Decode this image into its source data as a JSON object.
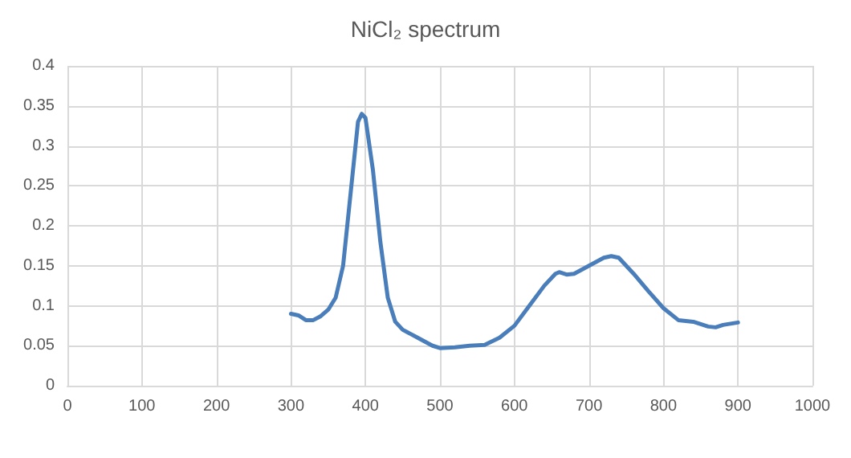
{
  "chart_data": {
    "type": "line",
    "title": "NiCl₂ spectrum",
    "x": [
      300,
      310,
      320,
      330,
      340,
      350,
      360,
      370,
      380,
      390,
      395,
      400,
      410,
      420,
      430,
      440,
      450,
      470,
      490,
      500,
      520,
      540,
      560,
      580,
      600,
      620,
      640,
      655,
      660,
      670,
      680,
      700,
      720,
      730,
      740,
      760,
      780,
      800,
      820,
      840,
      860,
      870,
      880,
      900
    ],
    "series": [
      {
        "color": "#4a7ebb",
        "values": [
          0.09,
          0.088,
          0.082,
          0.082,
          0.087,
          0.095,
          0.11,
          0.15,
          0.24,
          0.33,
          0.34,
          0.335,
          0.27,
          0.18,
          0.11,
          0.08,
          0.07,
          0.06,
          0.05,
          0.047,
          0.048,
          0.05,
          0.051,
          0.06,
          0.075,
          0.1,
          0.125,
          0.14,
          0.142,
          0.139,
          0.14,
          0.15,
          0.16,
          0.162,
          0.16,
          0.14,
          0.118,
          0.097,
          0.082,
          0.08,
          0.074,
          0.073,
          0.076,
          0.079
        ]
      }
    ],
    "xlim": [
      0,
      1000
    ],
    "xticks": [
      0,
      100,
      200,
      300,
      400,
      500,
      600,
      700,
      800,
      900,
      1000
    ],
    "ylim": [
      0,
      0.4
    ],
    "yticks": [
      0,
      0.05,
      0.1,
      0.15,
      0.2,
      0.25,
      0.3,
      0.35,
      0.4
    ],
    "grid": true,
    "marker": "none",
    "line_style": "solid"
  }
}
